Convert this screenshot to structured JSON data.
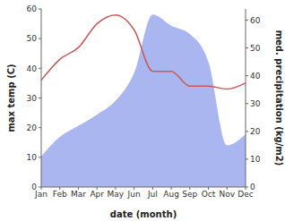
{
  "chart_data": {
    "type": "line",
    "x_label": "date (month)",
    "categories": [
      "Jan",
      "Feb",
      "Mar",
      "Apr",
      "May",
      "Jun",
      "Jul",
      "Aug",
      "Sep",
      "Oct",
      "Nov",
      "Dec"
    ],
    "ylim": [
      0,
      60
    ],
    "yticks": [
      0,
      10,
      20,
      30,
      40,
      50,
      60
    ],
    "y_label": "max temp (C)",
    "y2lim": [
      0,
      64
    ],
    "y2ticks": [
      0,
      10,
      20,
      30,
      40,
      50,
      60
    ],
    "y2_label": "med. precipitation (kg/m2)",
    "series": [
      {
        "name": "max temp (C)",
        "type": "line",
        "color": "#c75a5a",
        "values": [
          36,
          43,
          47,
          55,
          58,
          53,
          39,
          39,
          34,
          34,
          33,
          35
        ]
      },
      {
        "name": "med. precipitation (kg/m2)",
        "type": "area",
        "axis": "y2",
        "color": "#aab6f0",
        "values": [
          11,
          18,
          22,
          26,
          31,
          41,
          62,
          58,
          55,
          45,
          15,
          19
        ]
      }
    ]
  }
}
